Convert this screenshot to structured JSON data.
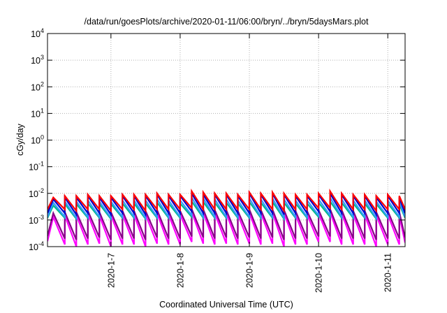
{
  "chart_data": {
    "type": "line",
    "title": "/data/run/goesPlots/archive/2020-01-11/06:00/bryn/../bryn/5daysMars.plot",
    "xlabel": "Coordinated Universal Time (UTC)",
    "ylabel": "cGy/day",
    "yscale": "log",
    "ylim": [
      0.0001,
      10000
    ],
    "xlim": [
      "2020-01-06 02:00",
      "2020-01-11 06:00"
    ],
    "grid": true,
    "legend": "none",
    "y_ticks": [
      {
        "base": "10",
        "exp": "-4"
      },
      {
        "base": "10",
        "exp": "-3"
      },
      {
        "base": "10",
        "exp": "-2"
      },
      {
        "base": "10",
        "exp": "-1"
      },
      {
        "base": "10",
        "exp": "0"
      },
      {
        "base": "10",
        "exp": "1"
      },
      {
        "base": "10",
        "exp": "2"
      },
      {
        "base": "10",
        "exp": "3"
      },
      {
        "base": "10",
        "exp": "4"
      }
    ],
    "x_ticks": [
      {
        "label": "2020-1-7",
        "date": "2020-01-07 00:00"
      },
      {
        "label": "2020-1-8",
        "date": "2020-01-08 00:00"
      },
      {
        "label": "2020-1-9",
        "date": "2020-01-09 00:00"
      },
      {
        "label": "2020-1-10",
        "date": "2020-01-10 00:00"
      },
      {
        "label": "2020-1-11",
        "date": "2020-01-11 00:00"
      }
    ],
    "sawtooth": {
      "x_start": "2020-01-06 02:00",
      "peak_times": [
        "2020-01-06 04:00",
        "2020-01-06 08:00",
        "2020-01-06 12:00",
        "2020-01-06 16:00",
        "2020-01-06 20:00",
        "2020-01-07 00:00",
        "2020-01-07 04:00",
        "2020-01-07 08:00",
        "2020-01-07 12:00",
        "2020-01-07 16:00",
        "2020-01-07 20:00",
        "2020-01-08 00:00",
        "2020-01-08 04:00",
        "2020-01-08 08:00",
        "2020-01-08 12:00",
        "2020-01-08 16:00",
        "2020-01-08 20:00",
        "2020-01-09 00:00",
        "2020-01-09 04:00",
        "2020-01-09 08:00",
        "2020-01-09 12:00",
        "2020-01-09 16:00",
        "2020-01-09 20:00",
        "2020-01-10 00:00",
        "2020-01-10 04:00",
        "2020-01-10 08:00",
        "2020-01-10 12:00",
        "2020-01-10 16:00",
        "2020-01-10 20:00",
        "2020-01-11 00:00",
        "2020-01-11 04:00"
      ],
      "x_end": "2020-01-11 06:00"
    },
    "series": [
      {
        "color": "#ff0000",
        "peaks": [
          0.007,
          0.008,
          0.008,
          0.009,
          0.008,
          0.008,
          0.009,
          0.009,
          0.009,
          0.01,
          0.009,
          0.009,
          0.012,
          0.011,
          0.01,
          0.01,
          0.009,
          0.011,
          0.01,
          0.011,
          0.01,
          0.009,
          0.009,
          0.01,
          0.012,
          0.01,
          0.009,
          0.009,
          0.008,
          0.009,
          0.008
        ],
        "troughs": [
          0.0025,
          0.0025,
          0.0022,
          0.0025,
          0.0025,
          0.0022,
          0.0025,
          0.0025,
          0.0022,
          0.0025,
          0.0025,
          0.0025,
          0.0028,
          0.0025,
          0.0025,
          0.0025,
          0.0025,
          0.0025,
          0.0025,
          0.0025,
          0.0022,
          0.0025,
          0.0025,
          0.0028,
          0.0028,
          0.0025,
          0.0025,
          0.0025,
          0.0022,
          0.0025,
          0.0025
        ],
        "end": 0.0025
      },
      {
        "color": "#0000cc",
        "peaks": [
          0.006,
          0.007,
          0.007,
          0.008,
          0.007,
          0.007,
          0.008,
          0.008,
          0.008,
          0.009,
          0.008,
          0.008,
          0.01,
          0.009,
          0.009,
          0.009,
          0.008,
          0.01,
          0.009,
          0.01,
          0.009,
          0.008,
          0.008,
          0.009,
          0.01,
          0.009,
          0.008,
          0.008,
          0.007,
          0.008,
          0.007
        ],
        "troughs": [
          0.0018,
          0.0018,
          0.0016,
          0.0018,
          0.0018,
          0.0016,
          0.0018,
          0.0018,
          0.0016,
          0.0018,
          0.0018,
          0.0018,
          0.0021,
          0.0018,
          0.0018,
          0.0018,
          0.0018,
          0.0018,
          0.0018,
          0.0018,
          0.0016,
          0.0018,
          0.0018,
          0.0021,
          0.0021,
          0.0018,
          0.0018,
          0.0018,
          0.0016,
          0.0018,
          0.0018
        ],
        "end": 0.0018
      },
      {
        "color": "#3399ff",
        "peaks": [
          0.0045,
          0.005,
          0.005,
          0.0055,
          0.005,
          0.005,
          0.0055,
          0.0055,
          0.0055,
          0.006,
          0.0055,
          0.0055,
          0.007,
          0.0065,
          0.006,
          0.006,
          0.0055,
          0.0065,
          0.006,
          0.0065,
          0.006,
          0.0055,
          0.0055,
          0.006,
          0.007,
          0.006,
          0.0055,
          0.0055,
          0.005,
          0.0055,
          0.005
        ],
        "troughs": [
          0.0013,
          0.0013,
          0.0012,
          0.0013,
          0.0013,
          0.0012,
          0.0013,
          0.0013,
          0.0012,
          0.0013,
          0.0013,
          0.0013,
          0.0015,
          0.0013,
          0.0013,
          0.0013,
          0.0013,
          0.0013,
          0.0013,
          0.0013,
          0.0012,
          0.0013,
          0.0013,
          0.0015,
          0.0015,
          0.0013,
          0.0013,
          0.0013,
          0.0012,
          0.0013,
          0.0013
        ],
        "end": 0.0013
      },
      {
        "color": "#00bb88",
        "peaks": [
          0.0035,
          0.004,
          0.004,
          0.0042,
          0.004,
          0.004,
          0.0042,
          0.0042,
          0.0042,
          0.0045,
          0.0042,
          0.0042,
          0.005,
          0.0048,
          0.0045,
          0.0045,
          0.0042,
          0.0048,
          0.0045,
          0.0048,
          0.0045,
          0.0042,
          0.0042,
          0.0045,
          0.005,
          0.0045,
          0.0042,
          0.0042,
          0.004,
          0.0042,
          0.004
        ],
        "troughs": [
          0.0012,
          0.0012,
          0.0011,
          0.0012,
          0.0012,
          0.0011,
          0.0012,
          0.0012,
          0.0011,
          0.0012,
          0.0012,
          0.0012,
          0.0013,
          0.0012,
          0.0012,
          0.0012,
          0.0012,
          0.0012,
          0.0012,
          0.0012,
          0.0011,
          0.0012,
          0.0012,
          0.0013,
          0.0013,
          0.0012,
          0.0012,
          0.0012,
          0.0011,
          0.0012,
          0.0012
        ],
        "end": 0.0012
      },
      {
        "color": "#880088",
        "peaks": [
          0.0018,
          0.002,
          0.002,
          0.0022,
          0.002,
          0.002,
          0.0022,
          0.0022,
          0.0022,
          0.0024,
          0.0022,
          0.0022,
          0.0026,
          0.0025,
          0.0024,
          0.0024,
          0.0022,
          0.0025,
          0.0024,
          0.0025,
          0.0024,
          0.0022,
          0.0022,
          0.0024,
          0.0026,
          0.0024,
          0.0022,
          0.0022,
          0.002,
          0.0022,
          0.002
        ],
        "troughs": [
          0.00025,
          0.0002,
          0.00018,
          0.0002,
          0.00022,
          0.00018,
          0.0002,
          0.0002,
          0.00018,
          0.00022,
          0.0002,
          0.0002,
          0.00024,
          0.00022,
          0.0002,
          0.00022,
          0.0002,
          0.00022,
          0.0002,
          0.00022,
          0.00018,
          0.0002,
          0.0002,
          0.00024,
          0.00024,
          0.0002,
          0.0002,
          0.0002,
          0.00018,
          0.0002,
          0.0002
        ],
        "end": 0.00022
      },
      {
        "color": "#ff00ff",
        "peaks": [
          0.0013,
          0.0015,
          0.0015,
          0.0016,
          0.0015,
          0.0015,
          0.0016,
          0.0016,
          0.0016,
          0.0018,
          0.0016,
          0.0016,
          0.002,
          0.0019,
          0.0018,
          0.0018,
          0.0016,
          0.0019,
          0.0018,
          0.0019,
          0.0018,
          0.0016,
          0.0016,
          0.0018,
          0.002,
          0.0018,
          0.0016,
          0.0016,
          0.0015,
          0.0016,
          0.0015
        ],
        "troughs": [
          0.00016,
          0.00012,
          0.0001,
          0.00012,
          0.00013,
          0.0001,
          0.00012,
          0.00012,
          0.0001,
          0.00013,
          0.00012,
          0.00012,
          0.00015,
          0.00013,
          0.00012,
          0.00013,
          0.00012,
          0.00013,
          0.00012,
          0.00013,
          0.0001,
          0.00012,
          0.00012,
          0.00015,
          0.00015,
          0.00012,
          0.00012,
          0.00012,
          0.0001,
          0.00012,
          0.00012
        ],
        "end": 0.00014
      }
    ]
  }
}
